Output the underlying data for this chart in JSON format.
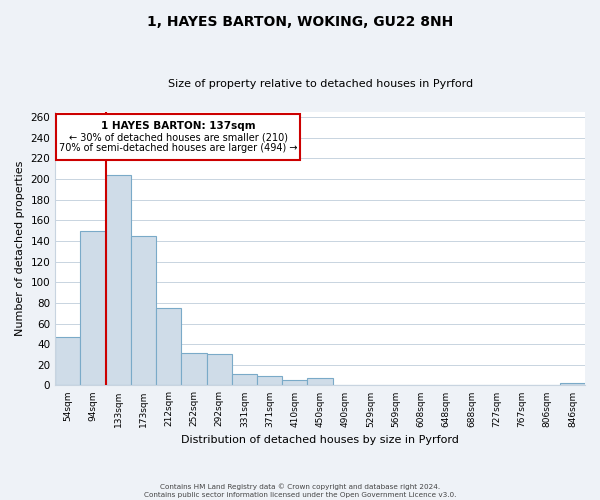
{
  "title": "1, HAYES BARTON, WOKING, GU22 8NH",
  "subtitle": "Size of property relative to detached houses in Pyrford",
  "xlabel": "Distribution of detached houses by size in Pyrford",
  "ylabel": "Number of detached properties",
  "bar_labels": [
    "54sqm",
    "94sqm",
    "133sqm",
    "173sqm",
    "212sqm",
    "252sqm",
    "292sqm",
    "331sqm",
    "371sqm",
    "410sqm",
    "450sqm",
    "490sqm",
    "529sqm",
    "569sqm",
    "608sqm",
    "648sqm",
    "688sqm",
    "727sqm",
    "767sqm",
    "806sqm",
    "846sqm"
  ],
  "bar_values": [
    47,
    150,
    204,
    145,
    75,
    31,
    30,
    11,
    9,
    5,
    7,
    0,
    0,
    0,
    0,
    0,
    0,
    0,
    0,
    0,
    2
  ],
  "bar_color": "#cfdce8",
  "bar_edge_color": "#7aaac8",
  "vline_x_idx": 2,
  "vline_color": "#cc0000",
  "vline_label": "1 HAYES BARTON: 137sqm",
  "annotation_smaller": "← 30% of detached houses are smaller (210)",
  "annotation_larger": "70% of semi-detached houses are larger (494) →",
  "box_color": "#ffffff",
  "box_edge_color": "#cc0000",
  "ylim": [
    0,
    265
  ],
  "yticks": [
    0,
    20,
    40,
    60,
    80,
    100,
    120,
    140,
    160,
    180,
    200,
    220,
    240,
    260
  ],
  "footer_line1": "Contains HM Land Registry data © Crown copyright and database right 2024.",
  "footer_line2": "Contains public sector information licensed under the Open Government Licence v3.0.",
  "bg_color": "#eef2f7",
  "plot_bg_color": "#ffffff",
  "grid_color": "#c8d4e0"
}
